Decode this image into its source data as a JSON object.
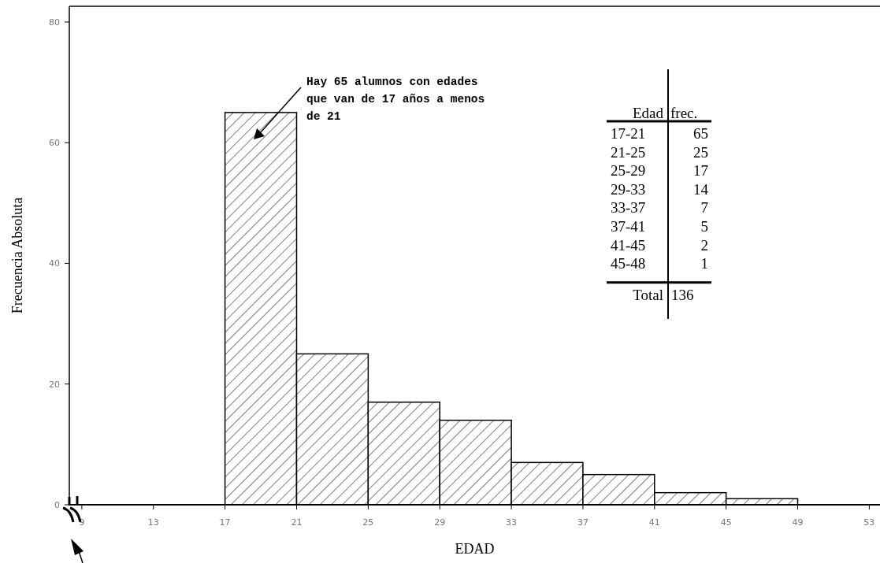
{
  "chart_data": {
    "type": "histogram",
    "xlabel": "EDAD",
    "ylabel": "Frecuencia Absoluta",
    "bins": [
      17,
      21,
      25,
      29,
      33,
      37,
      41,
      45,
      49
    ],
    "values": [
      65,
      25,
      17,
      14,
      7,
      5,
      2,
      1
    ],
    "color": "#000000",
    "xlim": [
      8.3,
      53.6
    ],
    "xticks": [
      9,
      13,
      17,
      21,
      25,
      29,
      33,
      37,
      41,
      45,
      49,
      53
    ],
    "ylim": [
      0,
      82.6
    ],
    "yticks": [
      0,
      20,
      40,
      60,
      80
    ],
    "annotations": [
      "Hay 65 alumnos con edades\nque van de 17 años a menos\nde 21",
      "Edad",
      "frec.",
      "17-21",
      "65",
      "21-25",
      "25",
      "25-29",
      "17",
      "29-33",
      "14",
      "33-37",
      "7",
      "37-41",
      "5",
      "41-45",
      "2",
      "45-48",
      "1",
      "Total",
      "136"
    ]
  }
}
